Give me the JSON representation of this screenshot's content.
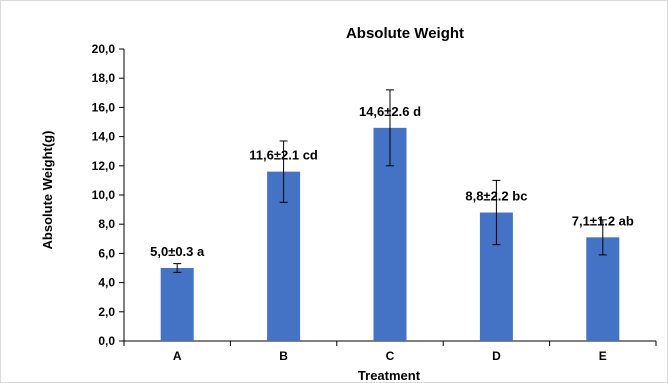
{
  "chart_data": {
    "type": "bar",
    "title": "Absolute Weight",
    "xlabel": "Treatment",
    "ylabel": "Absolute Weight(g)",
    "categories": [
      "A",
      "B",
      "C",
      "D",
      "E"
    ],
    "values": [
      5.0,
      11.6,
      14.6,
      8.8,
      7.1
    ],
    "errors": [
      0.3,
      2.1,
      2.6,
      2.2,
      1.2
    ],
    "data_labels": [
      "5,0±0.3 a",
      "11,6±2.1 cd",
      "14,6±2.6 d",
      "8,8±2.2 bc",
      "7,1±1.2 ab"
    ],
    "ylim": [
      0,
      20
    ],
    "y_ticks": [
      0,
      2,
      4,
      6,
      8,
      10,
      12,
      14,
      16,
      18,
      20
    ],
    "y_tick_labels": [
      "0,0",
      "2,0",
      "4,0",
      "6,0",
      "8,0",
      "10,0",
      "12,0",
      "14,0",
      "16,0",
      "18,0",
      "20,0"
    ],
    "grid": false,
    "legend": "none",
    "error_bars": true,
    "bar_color": "#4472C4"
  }
}
